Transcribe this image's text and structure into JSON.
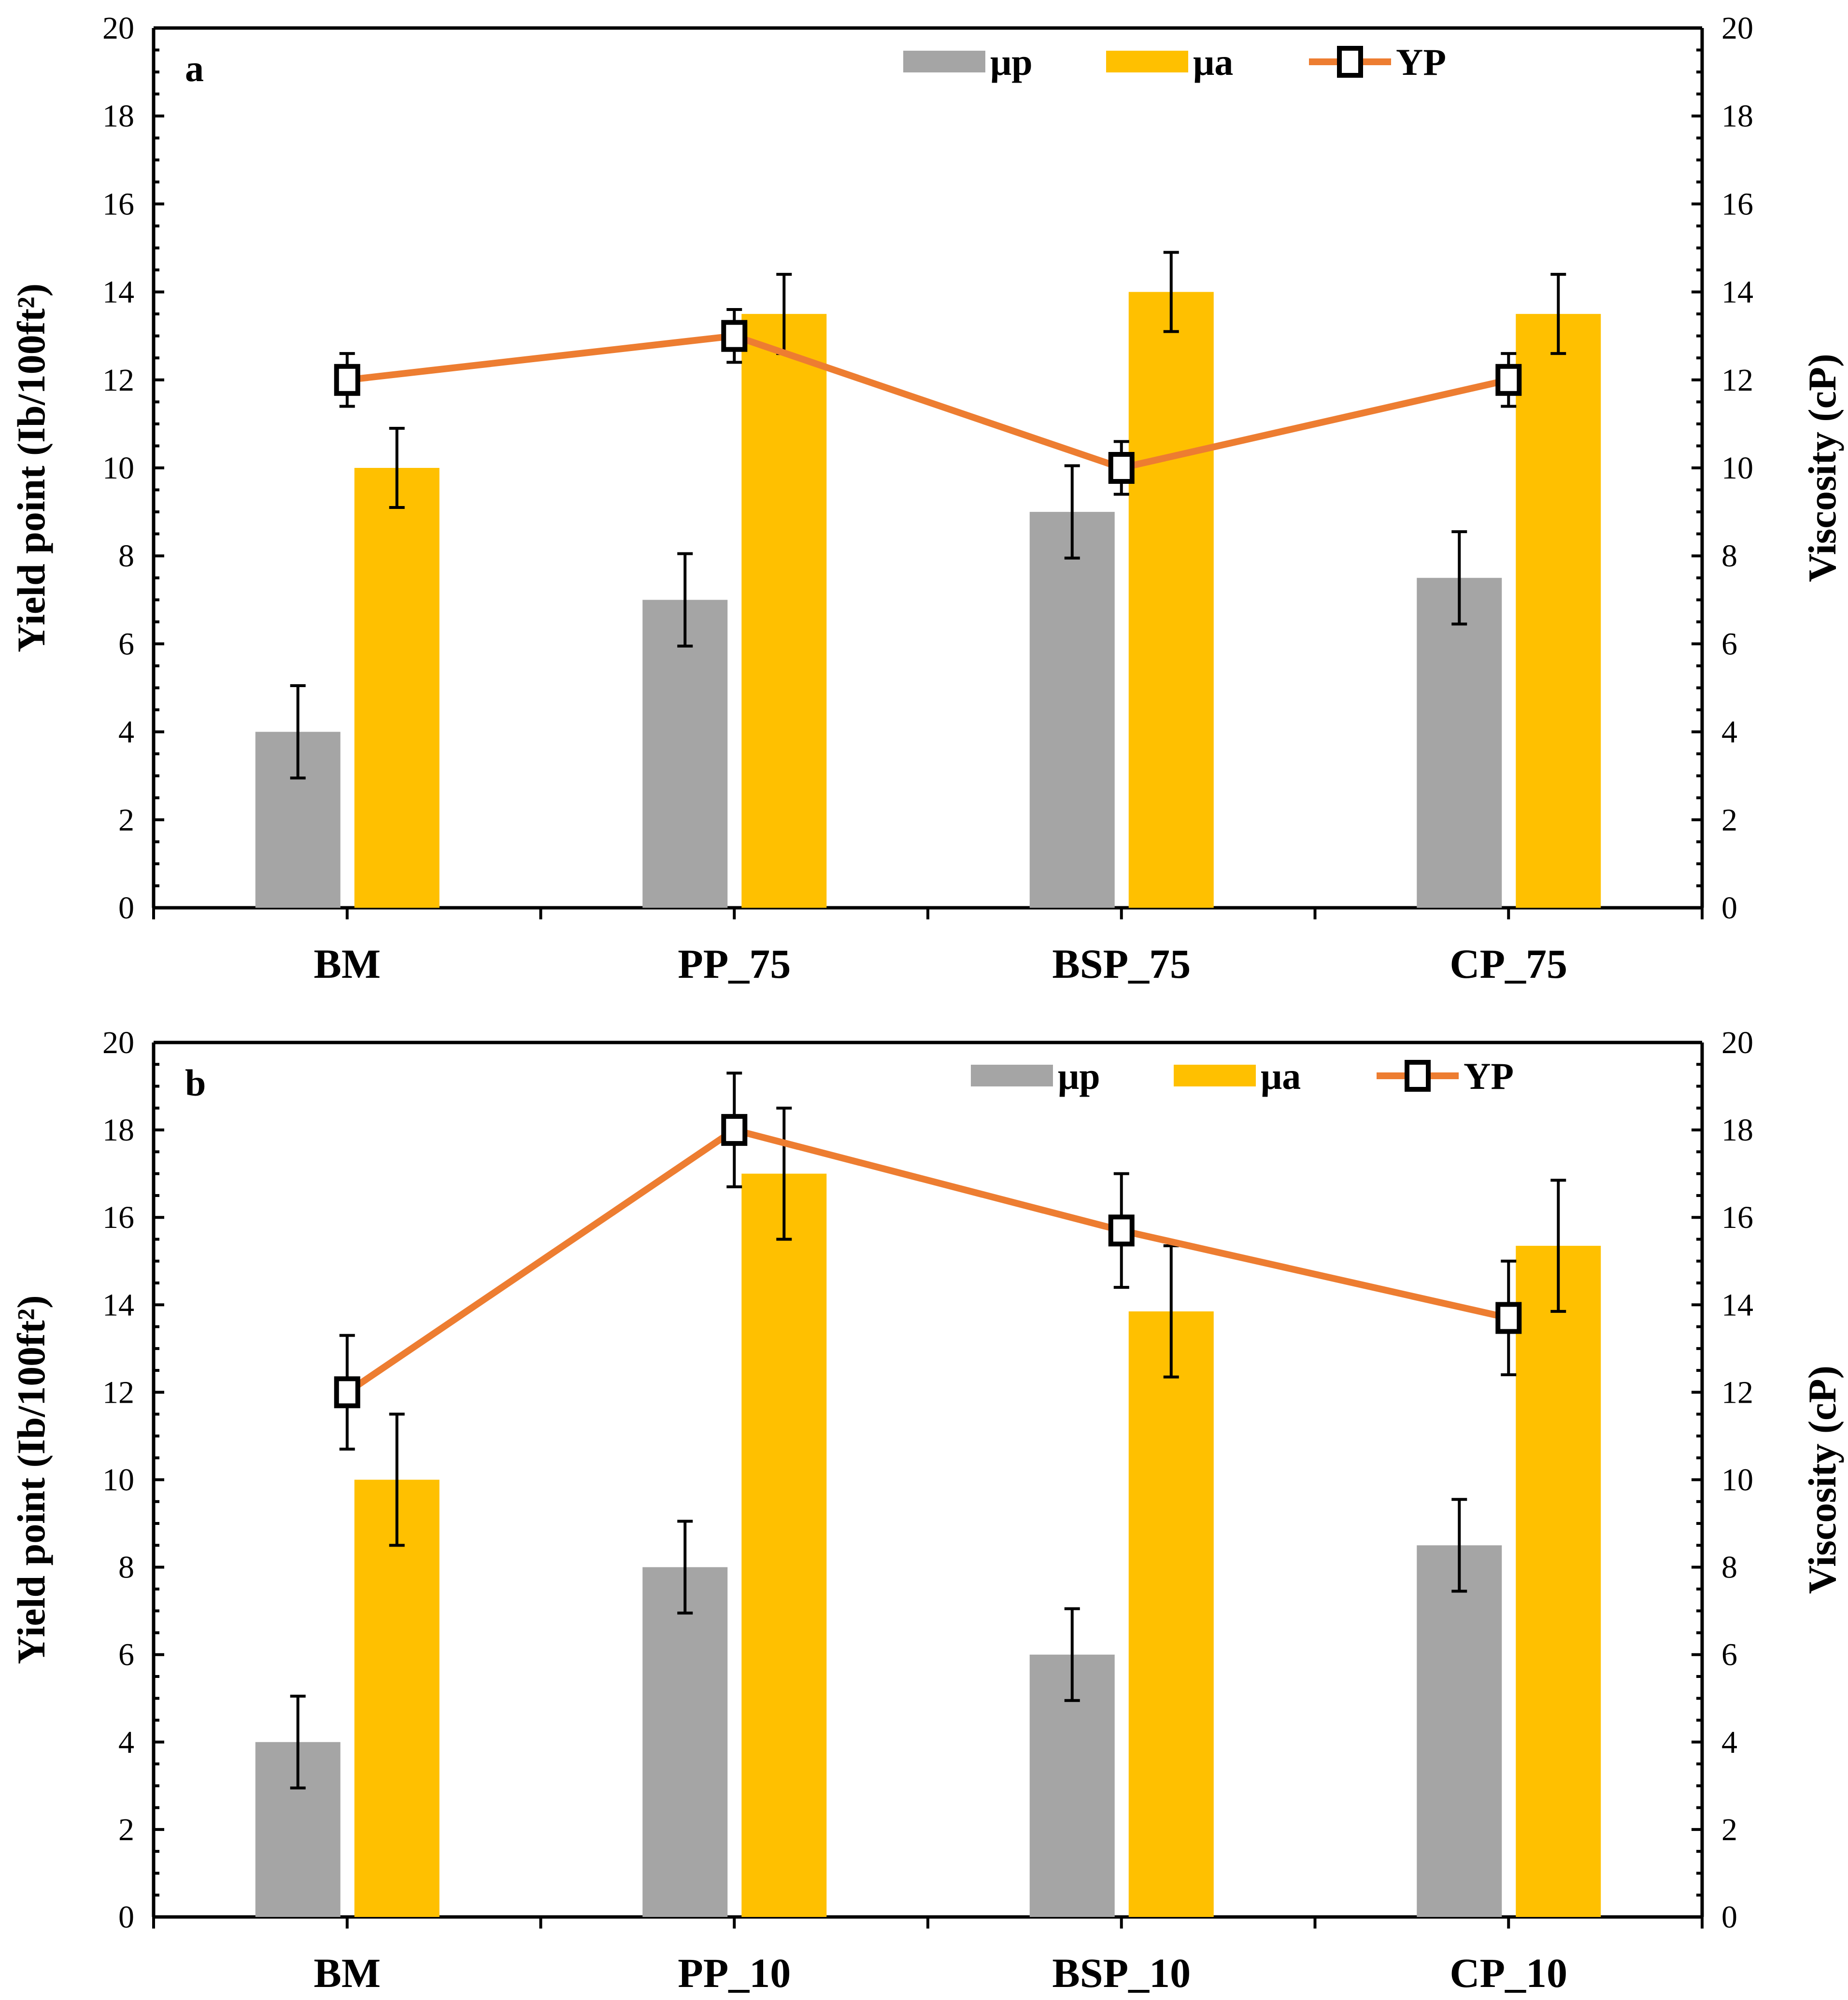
{
  "chart_data": [
    {
      "type": "bar",
      "panel_label": "a",
      "categories": [
        "BM",
        "PP_75",
        "BSP_75",
        "CP_75"
      ],
      "ylabel": "Yield point (Ib/100ft²)",
      "y2label": "Viscosity (cP)",
      "ylim": [
        0,
        20
      ],
      "y2lim": [
        0,
        20
      ],
      "yticks": [
        "0",
        "2",
        "4",
        "6",
        "8",
        "10",
        "12",
        "14",
        "16",
        "18",
        "20"
      ],
      "legend_placement": "top-center",
      "series": [
        {
          "name": "μp",
          "kind": "bar",
          "axis": "right",
          "color": "#a5a5a5",
          "values": [
            4,
            7,
            9,
            7.5
          ],
          "errors": [
            1.05,
            1.05,
            1.05,
            1.05
          ]
        },
        {
          "name": "μa",
          "kind": "bar",
          "axis": "right",
          "color": "#ffc000",
          "values": [
            10,
            13.5,
            14,
            13.5
          ],
          "errors": [
            0.9,
            0.9,
            0.9,
            0.9
          ]
        },
        {
          "name": "YP",
          "kind": "line",
          "axis": "left",
          "color": "#ed7d31",
          "values": [
            12,
            13,
            10,
            12
          ],
          "errors": [
            0.6,
            0.6,
            0.6,
            0.6
          ]
        }
      ]
    },
    {
      "type": "bar",
      "panel_label": "b",
      "categories": [
        "BM",
        "PP_10",
        "BSP_10",
        "CP_10"
      ],
      "ylabel": "Yield point (Ib/100ft²)",
      "y2label": "Viscosity (cP)",
      "ylim": [
        0,
        20
      ],
      "y2lim": [
        0,
        20
      ],
      "yticks": [
        "0",
        "2",
        "4",
        "6",
        "8",
        "10",
        "12",
        "14",
        "16",
        "18",
        "20"
      ],
      "legend_placement": "top-right",
      "series": [
        {
          "name": "μp",
          "kind": "bar",
          "axis": "right",
          "color": "#a5a5a5",
          "values": [
            4,
            8,
            6,
            8.5
          ],
          "errors": [
            1.05,
            1.05,
            1.05,
            1.05
          ]
        },
        {
          "name": "μa",
          "kind": "bar",
          "axis": "right",
          "color": "#ffc000",
          "values": [
            10,
            17,
            13.85,
            15.35
          ],
          "errors": [
            1.5,
            1.5,
            1.5,
            1.5
          ]
        },
        {
          "name": "YP",
          "kind": "line",
          "axis": "left",
          "color": "#ed7d31",
          "values": [
            12,
            18,
            15.7,
            13.7
          ],
          "errors": [
            1.3,
            1.3,
            1.3,
            1.3
          ]
        }
      ]
    }
  ]
}
